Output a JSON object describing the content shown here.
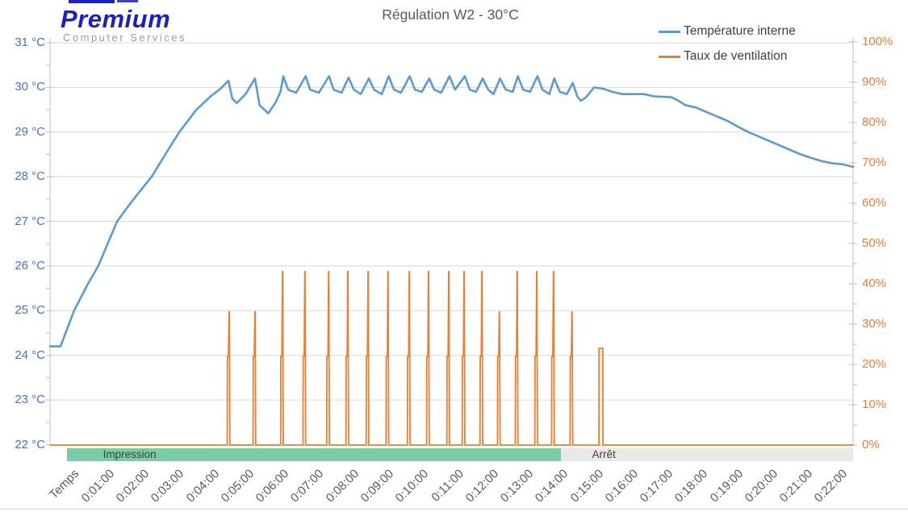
{
  "logo": {
    "brand": "Premium",
    "subtitle": "Computer Services",
    "brand_color": "#1B1FC9"
  },
  "title": "Régulation W2 - 30°C",
  "legend": [
    {
      "label": "Température interne",
      "color": "#5B9BD5"
    },
    {
      "label": "Taux de ventilation",
      "color": "#ED7D31"
    }
  ],
  "left_axis": {
    "labels": [
      "31 °C",
      "30 °C",
      "29 °C",
      "28 °C",
      "27 °C",
      "26 °C",
      "25 °C",
      "24 °C",
      "23 °C",
      "22 °C"
    ],
    "min": 22,
    "max": 31,
    "color": "#4472C4"
  },
  "right_axis": {
    "labels": [
      "100%",
      "90%",
      "80%",
      "70%",
      "60%",
      "50%",
      "40%",
      "30%",
      "20%",
      "10%",
      "0%"
    ],
    "min": 0,
    "max": 100,
    "color": "#ED7D31"
  },
  "x_axis": {
    "labels": [
      "Temps",
      "0:01:00",
      "0:02:00",
      "0:03:00",
      "0:04:00",
      "0:05:00",
      "0:06:00",
      "0:07:00",
      "0:08:00",
      "0:09:00",
      "0:10:00",
      "0:11:00",
      "0:12:00",
      "0:13:00",
      "0:14:00",
      "0:15:00",
      "0:16:00",
      "0:17:00",
      "0:18:00",
      "0:19:00",
      "0:20:00",
      "0:21:00",
      "0:22:00"
    ],
    "color": "#595959"
  },
  "bands": [
    {
      "label": "Impression",
      "t0": 0.49,
      "t1": 14.63,
      "label_t": 2.28,
      "color": "#79CDA4"
    },
    {
      "label": "Arrêt",
      "t0": 14.63,
      "t1": 23.0,
      "label_t": 15.86,
      "color": "#E8E8E8"
    }
  ],
  "chart_data": {
    "type": "line",
    "title": "Régulation W2 - 30°C",
    "x_unit": "minutes (h:mm:ss shown)",
    "x_range": [
      0,
      23
    ],
    "left_ylim": [
      22,
      31
    ],
    "right_ylim": [
      0,
      100
    ],
    "grid": "horizontal, 1 °C spacing (left axis)",
    "legend_position": "top-right",
    "series": [
      {
        "name": "Température interne",
        "axis": "left",
        "unit": "°C",
        "color": "#5B9BD5",
        "points": [
          [
            0,
            24.2
          ],
          [
            0.3,
            24.2
          ],
          [
            0.69,
            25.0
          ],
          [
            1.05,
            25.55
          ],
          [
            1.38,
            26.0
          ],
          [
            1.65,
            26.5
          ],
          [
            1.92,
            27.0
          ],
          [
            2.2,
            27.3
          ],
          [
            2.55,
            27.65
          ],
          [
            2.91,
            28.0
          ],
          [
            3.3,
            28.5
          ],
          [
            3.7,
            29.0
          ],
          [
            4.19,
            29.5
          ],
          [
            4.6,
            29.8
          ],
          [
            4.88,
            29.97
          ],
          [
            5.11,
            30.15
          ],
          [
            5.22,
            29.75
          ],
          [
            5.35,
            29.65
          ],
          [
            5.6,
            29.85
          ],
          [
            5.87,
            30.2
          ],
          [
            6.0,
            29.6
          ],
          [
            6.25,
            29.42
          ],
          [
            6.45,
            29.65
          ],
          [
            6.6,
            29.9
          ],
          [
            6.68,
            30.25
          ],
          [
            6.82,
            29.95
          ],
          [
            7.05,
            29.88
          ],
          [
            7.32,
            30.25
          ],
          [
            7.45,
            29.95
          ],
          [
            7.7,
            29.88
          ],
          [
            7.99,
            30.25
          ],
          [
            8.12,
            29.95
          ],
          [
            8.35,
            29.88
          ],
          [
            8.55,
            30.22
          ],
          [
            8.7,
            29.95
          ],
          [
            8.9,
            29.85
          ],
          [
            9.13,
            30.2
          ],
          [
            9.28,
            29.95
          ],
          [
            9.5,
            29.85
          ],
          [
            9.7,
            30.25
          ],
          [
            9.85,
            29.95
          ],
          [
            10.05,
            29.88
          ],
          [
            10.3,
            30.25
          ],
          [
            10.45,
            29.95
          ],
          [
            10.65,
            29.9
          ],
          [
            10.86,
            30.2
          ],
          [
            11.0,
            29.95
          ],
          [
            11.2,
            29.88
          ],
          [
            11.44,
            30.25
          ],
          [
            11.6,
            29.95
          ],
          [
            11.88,
            30.25
          ],
          [
            12.02,
            29.95
          ],
          [
            12.2,
            29.9
          ],
          [
            12.39,
            30.2
          ],
          [
            12.55,
            29.95
          ],
          [
            12.7,
            29.85
          ],
          [
            12.89,
            30.2
          ],
          [
            13.05,
            29.95
          ],
          [
            13.25,
            29.9
          ],
          [
            13.4,
            30.25
          ],
          [
            13.55,
            29.95
          ],
          [
            13.75,
            29.9
          ],
          [
            13.96,
            30.25
          ],
          [
            14.1,
            29.95
          ],
          [
            14.3,
            29.85
          ],
          [
            14.44,
            30.2
          ],
          [
            14.6,
            29.9
          ],
          [
            14.8,
            29.85
          ],
          [
            14.97,
            30.1
          ],
          [
            15.1,
            29.8
          ],
          [
            15.2,
            29.7
          ],
          [
            15.35,
            29.78
          ],
          [
            15.58,
            30.0
          ],
          [
            15.85,
            29.97
          ],
          [
            16.1,
            29.9
          ],
          [
            16.4,
            29.85
          ],
          [
            17.0,
            29.85
          ],
          [
            17.3,
            29.8
          ],
          [
            17.8,
            29.78
          ],
          [
            18.0,
            29.7
          ],
          [
            18.2,
            29.6
          ],
          [
            18.5,
            29.55
          ],
          [
            18.8,
            29.45
          ],
          [
            19.1,
            29.35
          ],
          [
            19.4,
            29.25
          ],
          [
            19.7,
            29.12
          ],
          [
            20.0,
            29.0
          ],
          [
            20.3,
            28.9
          ],
          [
            20.6,
            28.8
          ],
          [
            20.9,
            28.7
          ],
          [
            21.2,
            28.6
          ],
          [
            21.5,
            28.5
          ],
          [
            21.8,
            28.42
          ],
          [
            22.1,
            28.35
          ],
          [
            22.4,
            28.3
          ],
          [
            22.7,
            28.28
          ],
          [
            23.0,
            28.22
          ]
        ]
      },
      {
        "name": "Taux de ventilation",
        "axis": "right",
        "unit": "%",
        "color": "#ED7D31",
        "baseline": 0,
        "shoulder_pct": 22,
        "spikes": [
          {
            "t": 5.13,
            "peak": 33
          },
          {
            "t": 5.87,
            "peak": 33
          },
          {
            "t": 6.66,
            "peak": 43
          },
          {
            "t": 7.3,
            "peak": 43
          },
          {
            "t": 7.98,
            "peak": 43
          },
          {
            "t": 8.53,
            "peak": 43
          },
          {
            "t": 9.11,
            "peak": 43
          },
          {
            "t": 9.68,
            "peak": 43
          },
          {
            "t": 10.29,
            "peak": 43
          },
          {
            "t": 10.84,
            "peak": 43
          },
          {
            "t": 11.42,
            "peak": 43
          },
          {
            "t": 11.86,
            "peak": 43
          },
          {
            "t": 12.37,
            "peak": 43
          },
          {
            "t": 12.87,
            "peak": 33
          },
          {
            "t": 13.38,
            "peak": 43
          },
          {
            "t": 13.94,
            "peak": 43
          },
          {
            "t": 14.42,
            "peak": 43
          },
          {
            "t": 14.95,
            "peak": 33
          },
          {
            "t": 15.78,
            "peak": 24,
            "wide": true
          }
        ]
      }
    ],
    "annotations": [
      {
        "label": "Impression",
        "from_min": 0.49,
        "to_min": 14.63
      },
      {
        "label": "Arrêt",
        "from_min": 14.63,
        "to_min": 23.0
      }
    ]
  },
  "style": {
    "gridline_color": "#D9D9D9",
    "axis_color": "#BFBFBF",
    "background": "#FFFFFF"
  }
}
